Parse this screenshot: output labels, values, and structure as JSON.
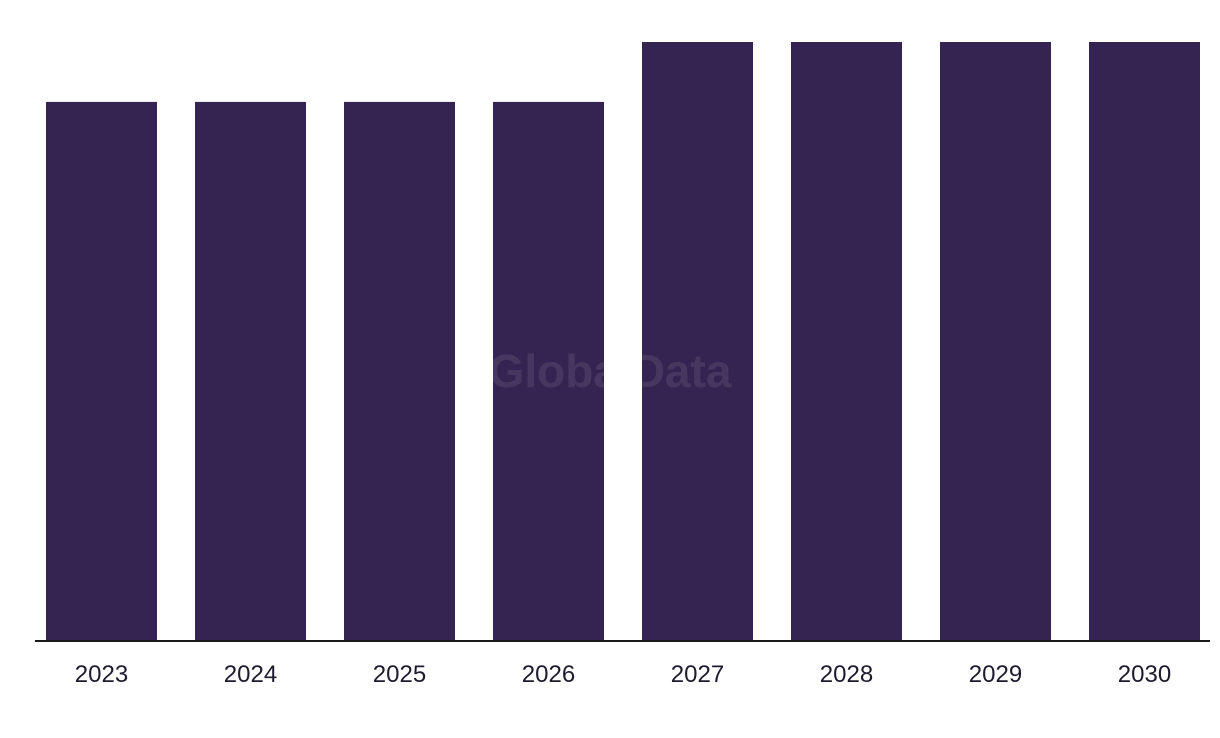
{
  "watermark": "GlobalData",
  "colors": {
    "bar": "#352451",
    "axis": "#1a1a1a",
    "tick_text": "#1f1b2d",
    "background": "#ffffff"
  },
  "chart_data": {
    "type": "bar",
    "title": "",
    "xlabel": "",
    "ylabel": "",
    "categories": [
      "2023",
      "2024",
      "2025",
      "2026",
      "2027",
      "2028",
      "2029",
      "2030"
    ],
    "values": [
      9,
      9,
      9,
      9,
      10,
      10,
      10,
      10
    ],
    "ylim": [
      0,
      10
    ],
    "grid": false,
    "legend": "none"
  }
}
